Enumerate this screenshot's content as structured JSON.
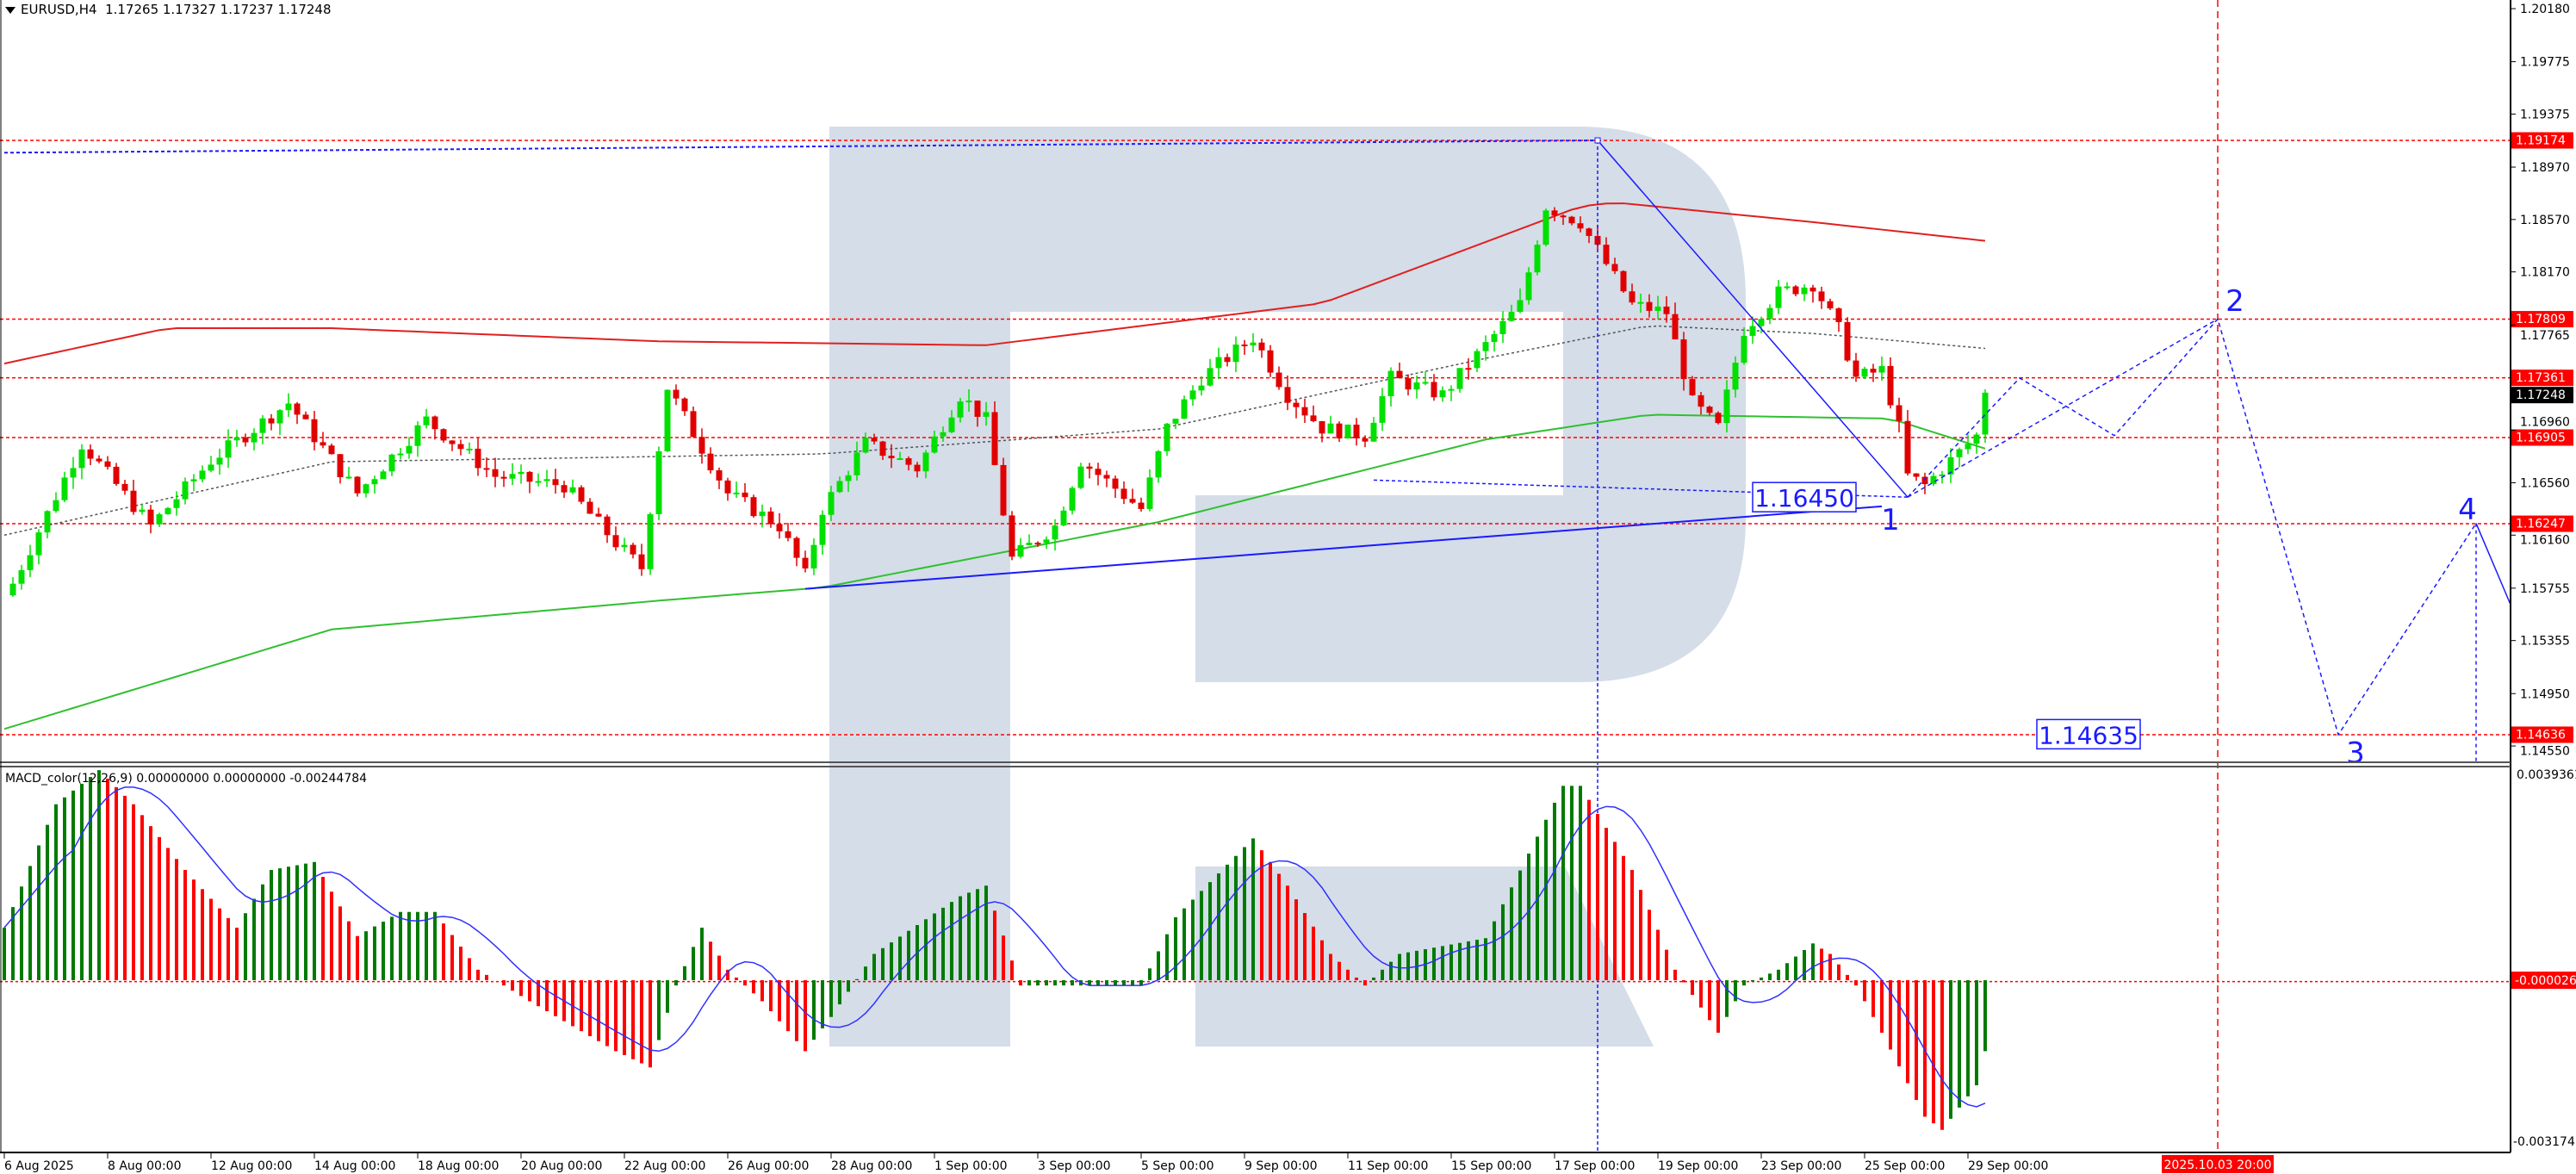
{
  "header": {
    "symbol": "EURUSD,H4",
    "ohlc": "1.17265 1.17327 1.17237 1.17248"
  },
  "macd_header": {
    "label": "MACD_color(12,26,9) 0.00000000 0.00000000 -0.00244784"
  },
  "colors": {
    "bull": "#00e000",
    "bear": "#e00000",
    "macd_up": "#007a00",
    "macd_down": "#ff0000",
    "signal": "#3030ff",
    "watermark": "#d4dde8",
    "level": "#ff0000",
    "drawing": "#1a1aff"
  },
  "price_axis": {
    "ticks": [
      "1.20180",
      "1.19775",
      "1.19375",
      "1.18970",
      "1.18570",
      "1.18170",
      "1.17765",
      "1.16960",
      "1.16560",
      "1.16160",
      "1.15755",
      "1.15355",
      "1.14950",
      "1.14550"
    ],
    "levels": [
      "1.19174",
      "1.17809",
      "1.17361",
      "1.16905",
      "1.16247",
      "1.14636"
    ],
    "current": "1.17248"
  },
  "macd_axis": {
    "top": "0.0039361",
    "zero_badge": "-0.000026",
    "bottom": "-0.003174"
  },
  "time_axis": {
    "labels": [
      "6 Aug 2025",
      "8 Aug 00:00",
      "12 Aug 00:00",
      "14 Aug 00:00",
      "18 Aug 00:00",
      "20 Aug 00:00",
      "22 Aug 00:00",
      "26 Aug 00:00",
      "28 Aug 00:00",
      "1 Sep 00:00",
      "3 Sep 00:00",
      "5 Sep 00:00",
      "9 Sep 00:00",
      "11 Sep 00:00",
      "15 Sep 00:00",
      "17 Sep 00:00",
      "19 Sep 00:00",
      "23 Sep 00:00",
      "25 Sep 00:00",
      "29 Sep 00:00"
    ],
    "marker": "2025.10.03 20:00"
  },
  "chart_data": {
    "type": "candlestick",
    "symbol": "EURUSD",
    "timeframe": "H4",
    "ylim": [
      1.144,
      1.2025
    ],
    "close_path": [
      [
        0,
        1.157
      ],
      [
        1,
        1.1579
      ],
      [
        9,
        1.1686
      ],
      [
        17,
        1.1623
      ],
      [
        24,
        1.1673
      ],
      [
        33,
        1.1717
      ],
      [
        41,
        1.1648
      ],
      [
        49,
        1.1704
      ],
      [
        57,
        1.1661
      ],
      [
        65,
        1.1654
      ],
      [
        71,
        1.161
      ],
      [
        74,
        1.1591
      ],
      [
        77,
        1.1729
      ],
      [
        84,
        1.1648
      ],
      [
        90,
        1.1623
      ],
      [
        93,
        1.1585
      ],
      [
        95,
        1.1636
      ],
      [
        100,
        1.1686
      ],
      [
        106,
        1.1667
      ],
      [
        111,
        1.1723
      ],
      [
        114,
        1.1704
      ],
      [
        117,
        1.1598
      ],
      [
        122,
        1.1623
      ],
      [
        125,
        1.1673
      ],
      [
        132,
        1.1636
      ],
      [
        135,
        1.1698
      ],
      [
        139,
        1.1736
      ],
      [
        145,
        1.1767
      ],
      [
        149,
        1.1723
      ],
      [
        153,
        1.1698
      ],
      [
        158,
        1.1692
      ],
      [
        161,
        1.1736
      ],
      [
        167,
        1.1723
      ],
      [
        172,
        1.1761
      ],
      [
        176,
        1.1792
      ],
      [
        179,
        1.1867
      ],
      [
        183,
        1.1855
      ],
      [
        186,
        1.1823
      ],
      [
        189,
        1.1792
      ],
      [
        193,
        1.1786
      ],
      [
        196,
        1.1717
      ],
      [
        199,
        1.1698
      ],
      [
        202,
        1.1773
      ],
      [
        206,
        1.1801
      ],
      [
        210,
        1.1808
      ],
      [
        213,
        1.1773
      ],
      [
        215,
        1.1736
      ],
      [
        218,
        1.1742
      ],
      [
        220,
        1.1698
      ],
      [
        221,
        1.1661
      ],
      [
        223,
        1.1654
      ],
      [
        226,
        1.1673
      ],
      [
        229,
        1.1692
      ],
      [
        230,
        1.17248
      ]
    ],
    "ma_slow_red": [
      [
        0,
        1.1747
      ],
      [
        19,
        1.1774
      ],
      [
        38,
        1.1774
      ],
      [
        76,
        1.1764
      ],
      [
        114,
        1.1761
      ],
      [
        153,
        1.1793
      ],
      [
        183,
        1.1867
      ],
      [
        187,
        1.187
      ],
      [
        210,
        1.1855
      ],
      [
        231,
        1.184
      ]
    ],
    "ma_fast_dotted": [
      [
        0,
        1.1616
      ],
      [
        38,
        1.1672
      ],
      [
        95,
        1.1678
      ],
      [
        134,
        1.1697
      ],
      [
        172,
        1.1751
      ],
      [
        191,
        1.1776
      ],
      [
        210,
        1.177
      ],
      [
        231,
        1.1758
      ]
    ],
    "ma_long_green": [
      [
        0,
        1.1468
      ],
      [
        38,
        1.1544
      ],
      [
        76,
        1.1566
      ],
      [
        95,
        1.1576
      ],
      [
        134,
        1.1626
      ],
      [
        172,
        1.1689
      ],
      [
        191,
        1.1708
      ],
      [
        219,
        1.1705
      ],
      [
        231,
        1.168
      ]
    ],
    "macd_hist": [
      [
        0,
        0.001
      ],
      [
        6,
        0.00335
      ],
      [
        11,
        0.004
      ],
      [
        15,
        0.00335
      ],
      [
        21,
        0.0021
      ],
      [
        27,
        0.001
      ],
      [
        31,
        0.0021
      ],
      [
        36,
        0.00225
      ],
      [
        41,
        0.00084
      ],
      [
        46,
        0.0013
      ],
      [
        50,
        0.0013
      ],
      [
        55,
        0.0002
      ],
      [
        61,
        -0.0004
      ],
      [
        71,
        -0.00135
      ],
      [
        75,
        -0.00166
      ],
      [
        78,
        -0.0001
      ],
      [
        81,
        0.001
      ],
      [
        84,
        0.0002
      ],
      [
        88,
        -0.0004
      ],
      [
        93,
        -0.00135
      ],
      [
        96,
        -0.0007
      ],
      [
        101,
        0.0005
      ],
      [
        111,
        0.0016
      ],
      [
        114,
        0.0018
      ],
      [
        118,
        -0.0001
      ],
      [
        122,
        -0.0001
      ],
      [
        132,
        -0.0001
      ],
      [
        136,
        0.0012
      ],
      [
        145,
        0.0027
      ],
      [
        149,
        0.0018
      ],
      [
        154,
        0.0005
      ],
      [
        158,
        -0.0001
      ],
      [
        162,
        0.0005
      ],
      [
        172,
        0.0008
      ],
      [
        181,
        0.0037
      ],
      [
        183,
        0.0037
      ],
      [
        189,
        0.0021
      ],
      [
        194,
        0.0002
      ],
      [
        199,
        -0.001
      ],
      [
        202,
        -0.0001
      ],
      [
        206,
        0.0002
      ],
      [
        210,
        0.0007
      ],
      [
        212,
        0.0005
      ],
      [
        215,
        -0.0001
      ],
      [
        218,
        -0.001
      ],
      [
        223,
        -0.0026
      ],
      [
        225,
        -0.00285
      ],
      [
        229,
        -0.002
      ],
      [
        230,
        -0.00135
      ]
    ],
    "drawings": {
      "top_dashed": [
        [
          0,
          1.1908
        ],
        [
          185,
          1.19174
        ]
      ],
      "drop_line": [
        [
          185,
          1.19174
        ],
        [
          221,
          1.1645
        ]
      ],
      "support_trend": [
        [
          93,
          1.1575
        ],
        [
          218,
          1.1638
        ]
      ],
      "low_dashed": [
        [
          159,
          1.1658
        ],
        [
          221,
          1.1645
        ]
      ],
      "forecast_path": [
        [
          221,
          1.1645
        ],
        [
          234,
          1.1736
        ],
        [
          245,
          1.1692
        ],
        [
          257,
          1.1781
        ],
        [
          271,
          1.14636
        ],
        [
          287,
          1.1625
        ]
      ],
      "forecast_alt": [
        [
          221,
          1.1645
        ],
        [
          257,
          1.1781
        ]
      ],
      "forecast_tail": [
        [
          287,
          1.1625
        ],
        [
          291,
          1.1563
        ]
      ],
      "vertical_bar": 185,
      "marker_bar": 257,
      "wave_labels": [
        {
          "text": "1",
          "bar": 219,
          "price": 1.1628
        },
        {
          "text": "2",
          "bar": 259,
          "price": 1.1795
        },
        {
          "text": "3",
          "bar": 273,
          "price": 1.145
        },
        {
          "text": "4",
          "bar": 286,
          "price": 1.1636
        }
      ],
      "price_boxes": [
        {
          "text": "1.16450",
          "bar": 212,
          "price": 1.1645
        },
        {
          "text": "1.14635",
          "bar": 245,
          "price": 1.1464
        }
      ]
    }
  }
}
